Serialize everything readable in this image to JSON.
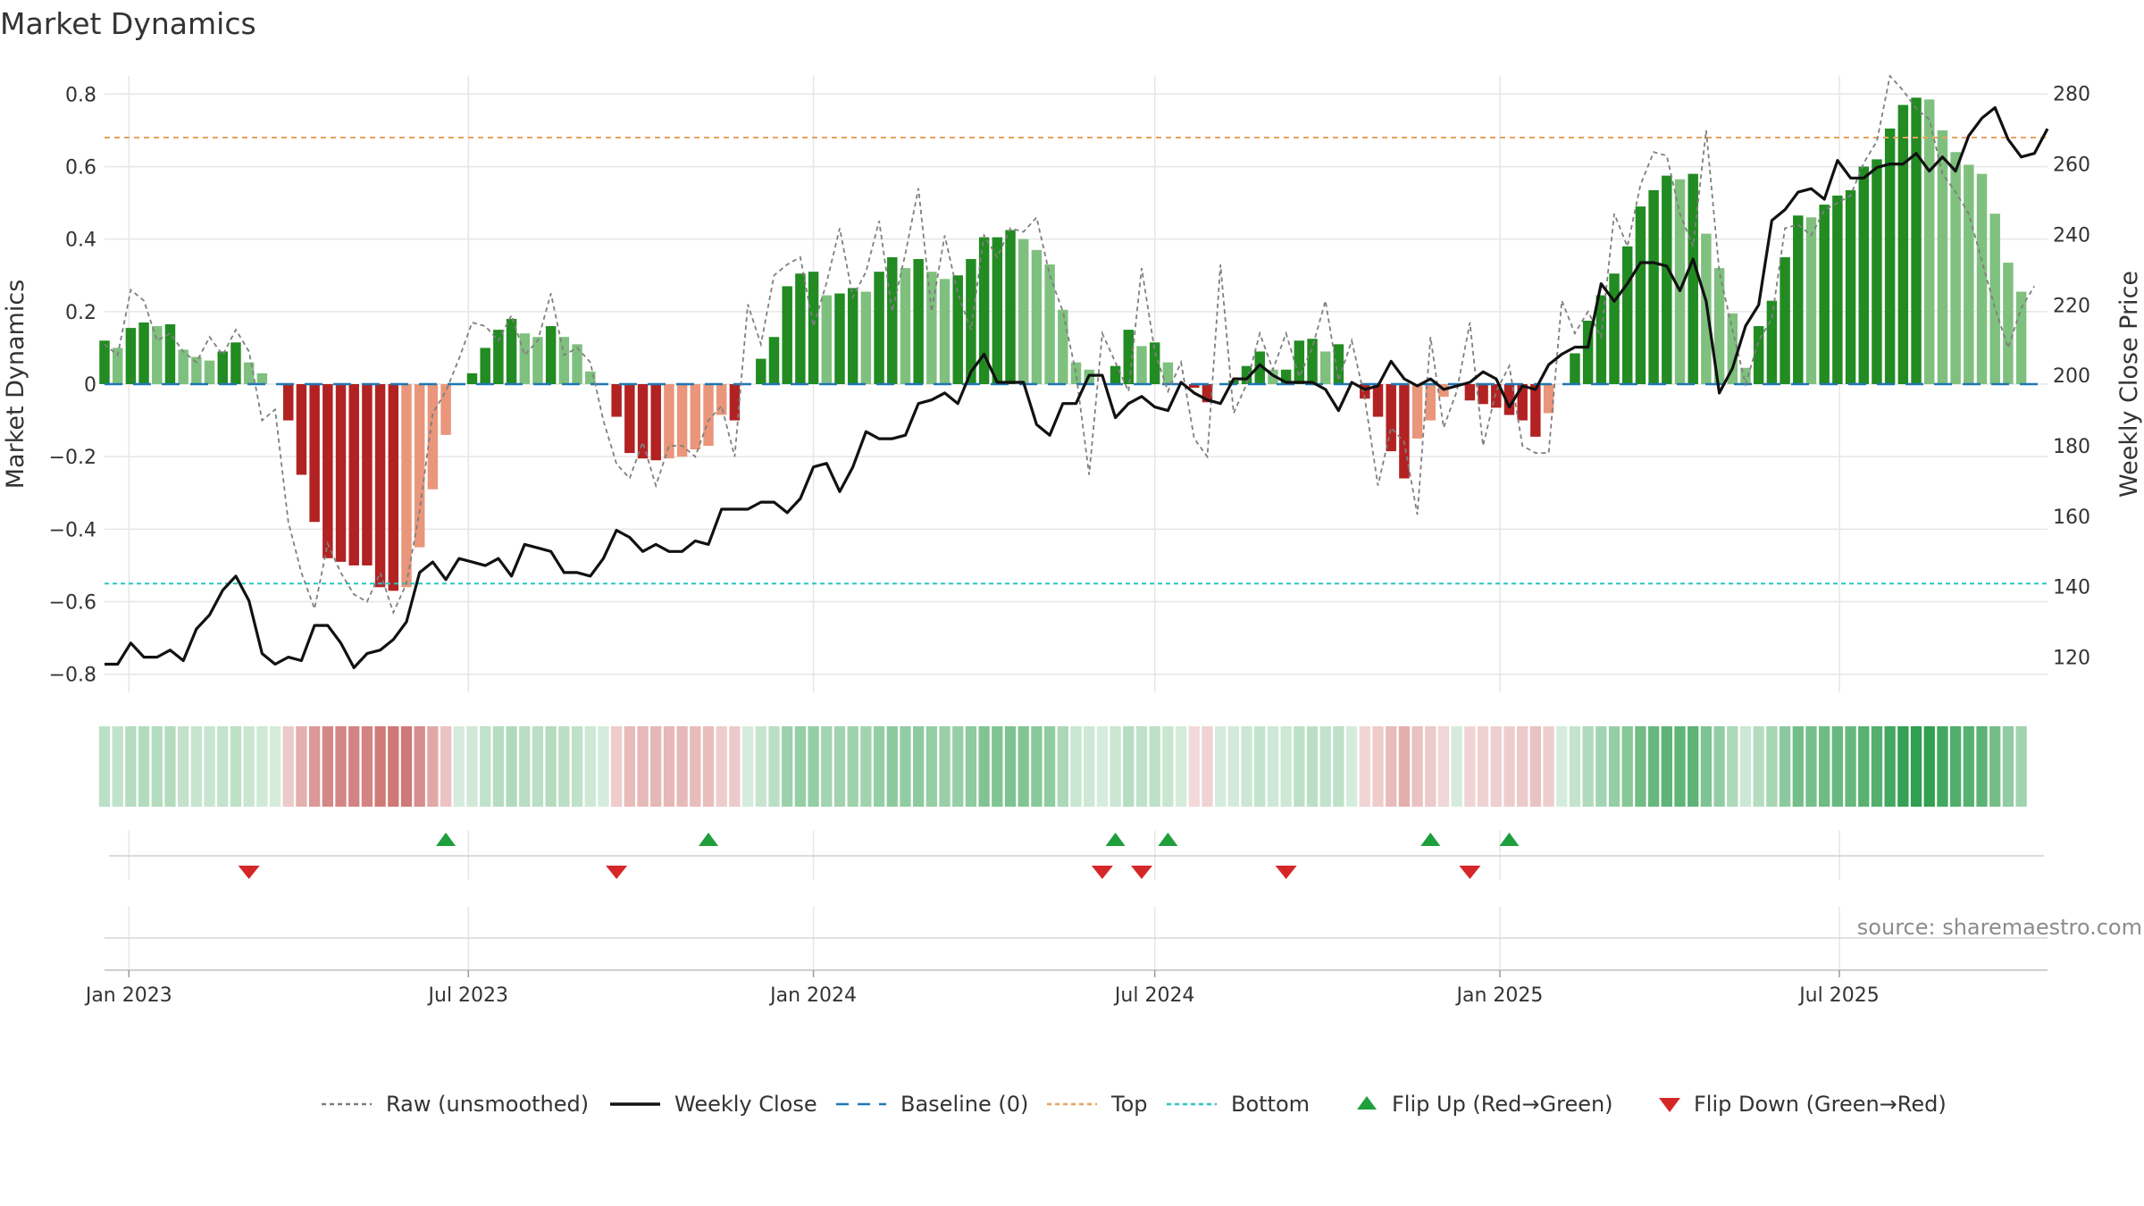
{
  "chart_data": {
    "type": "bar",
    "title": "Market Dynamics",
    "ylabel_left": "Market Dynamics",
    "ylabel_right": "Weekly Close Price",
    "ylim_left": [
      -0.85,
      0.85
    ],
    "ylim_right": [
      110,
      285
    ],
    "yticks_left": [
      -0.8,
      -0.6,
      -0.4,
      -0.2,
      0,
      0.2,
      0.4,
      0.6,
      0.8
    ],
    "ytick_labels_left": [
      "−0.8",
      "−0.6",
      "−0.4",
      "−0.2",
      "0",
      "0.2",
      "0.4",
      "0.6",
      "0.8"
    ],
    "yticks_right": [
      120,
      140,
      160,
      180,
      200,
      220,
      240,
      260,
      280
    ],
    "ytick_labels_right": [
      "120",
      "140",
      "160",
      "180",
      "200",
      "220",
      "240",
      "260",
      "280"
    ],
    "x_start": "2022-12-19",
    "x_end": "2025-10-20",
    "xticks": [
      {
        "date": "2023-01-01",
        "label": "Jan 2023"
      },
      {
        "date": "2023-07-01",
        "label": "Jul 2023"
      },
      {
        "date": "2024-01-01",
        "label": "Jan 2024"
      },
      {
        "date": "2024-07-01",
        "label": "Jul 2024"
      },
      {
        "date": "2025-01-01",
        "label": "Jan 2025"
      },
      {
        "date": "2025-07-01",
        "label": "Jul 2025"
      }
    ],
    "first_week": "2022-12-19",
    "top_level": 0.68,
    "bottom_level": -0.55,
    "baseline": 0,
    "dynamics": [
      0.12,
      0.1,
      0.155,
      0.17,
      0.16,
      0.165,
      0.095,
      0.075,
      0.065,
      0.09,
      0.115,
      0.06,
      0.03,
      0.0,
      -0.1,
      -0.25,
      -0.38,
      -0.48,
      -0.49,
      -0.5,
      -0.5,
      -0.56,
      -0.57,
      -0.56,
      -0.45,
      -0.29,
      -0.14,
      0.0,
      0.03,
      0.1,
      0.15,
      0.18,
      0.14,
      0.13,
      0.16,
      0.13,
      0.11,
      0.035,
      0.0,
      -0.09,
      -0.19,
      -0.205,
      -0.21,
      -0.205,
      -0.2,
      -0.18,
      -0.17,
      -0.085,
      -0.1,
      0.0,
      0.07,
      0.13,
      0.27,
      0.305,
      0.31,
      0.245,
      0.25,
      0.265,
      0.255,
      0.31,
      0.35,
      0.32,
      0.345,
      0.31,
      0.29,
      0.3,
      0.345,
      0.405,
      0.405,
      0.425,
      0.4,
      0.37,
      0.33,
      0.205,
      0.06,
      0.04,
      0.0,
      0.05,
      0.15,
      0.105,
      0.115,
      0.06,
      0.0,
      -0.01,
      -0.05,
      0.0,
      0.01,
      0.05,
      0.09,
      0.04,
      0.04,
      0.12,
      0.125,
      0.09,
      0.11,
      0.0,
      -0.04,
      -0.09,
      -0.185,
      -0.26,
      -0.15,
      -0.1,
      -0.035,
      0.0,
      -0.045,
      -0.055,
      -0.065,
      -0.085,
      -0.1,
      -0.145,
      -0.08,
      0.0,
      0.085,
      0.175,
      0.245,
      0.305,
      0.38,
      0.49,
      0.535,
      0.575,
      0.565,
      0.58,
      0.415,
      0.32,
      0.195,
      0.045,
      0.16,
      0.23,
      0.35,
      0.465,
      0.46,
      0.495,
      0.52,
      0.535,
      0.6,
      0.62,
      0.705,
      0.77,
      0.79,
      0.785,
      0.7,
      0.64,
      0.605,
      0.58,
      0.47,
      0.335,
      0.255
    ],
    "raw": [
      0.11,
      0.08,
      0.26,
      0.23,
      0.12,
      0.14,
      0.09,
      0.06,
      0.13,
      0.08,
      0.15,
      0.09,
      -0.1,
      -0.07,
      -0.38,
      -0.52,
      -0.62,
      -0.44,
      -0.52,
      -0.58,
      -0.6,
      -0.52,
      -0.63,
      -0.55,
      -0.35,
      -0.08,
      -0.02,
      0.07,
      0.17,
      0.16,
      0.12,
      0.19,
      0.08,
      0.12,
      0.25,
      0.08,
      0.1,
      0.06,
      -0.1,
      -0.22,
      -0.26,
      -0.16,
      -0.28,
      -0.17,
      -0.17,
      -0.2,
      -0.1,
      -0.06,
      -0.2,
      0.22,
      0.11,
      0.3,
      0.33,
      0.35,
      0.16,
      0.28,
      0.43,
      0.24,
      0.31,
      0.45,
      0.2,
      0.36,
      0.54,
      0.2,
      0.41,
      0.25,
      0.15,
      0.41,
      0.35,
      0.43,
      0.42,
      0.46,
      0.3,
      0.2,
      0.03,
      -0.25,
      0.14,
      0.06,
      -0.02,
      0.32,
      0.09,
      -0.02,
      0.06,
      -0.15,
      -0.2,
      0.33,
      -0.08,
      0.0,
      0.14,
      0.04,
      0.14,
      0.02,
      0.1,
      0.23,
      0.01,
      0.12,
      -0.04,
      -0.28,
      -0.12,
      -0.16,
      -0.36,
      0.13,
      -0.12,
      -0.02,
      0.17,
      -0.17,
      -0.02,
      0.05,
      -0.17,
      -0.19,
      -0.19,
      0.23,
      0.14,
      0.2,
      0.13,
      0.47,
      0.38,
      0.55,
      0.64,
      0.63,
      0.47,
      0.38,
      0.7,
      0.31,
      0.15,
      0.0,
      0.12,
      0.18,
      0.43,
      0.44,
      0.41,
      0.48,
      0.5,
      0.52,
      0.61,
      0.67,
      0.85,
      0.81,
      0.76,
      0.73,
      0.58,
      0.53,
      0.47,
      0.34,
      0.21,
      0.1,
      0.21,
      0.27
    ],
    "close": [
      118,
      118,
      124,
      120,
      120,
      122,
      119,
      128,
      132,
      139,
      143,
      136,
      121,
      118,
      120,
      119,
      129,
      129,
      124,
      117,
      121,
      122,
      125,
      130,
      144,
      147,
      142,
      148,
      147,
      146,
      148,
      143,
      152,
      151,
      150,
      144,
      144,
      143,
      148,
      156,
      154,
      150,
      152,
      150,
      150,
      153,
      152,
      162,
      162,
      162,
      164,
      164,
      161,
      165,
      174,
      175,
      167,
      174,
      184,
      182,
      182,
      183,
      192,
      193,
      195,
      192,
      201,
      206,
      198,
      198,
      198,
      186,
      183,
      192,
      192,
      200,
      200,
      188,
      192,
      194,
      191,
      190,
      198,
      195,
      193,
      192,
      199,
      199,
      203,
      200,
      198,
      198,
      198,
      196,
      190,
      198,
      196,
      197,
      204,
      199,
      197,
      199,
      196,
      197,
      198,
      201,
      199,
      191,
      197,
      196,
      203,
      206,
      208,
      208,
      226,
      221,
      226,
      232,
      232,
      231,
      224,
      233,
      221,
      195,
      202,
      214,
      220,
      244,
      247,
      252,
      253,
      250,
      261,
      256,
      256,
      259,
      260,
      260,
      263,
      258,
      262,
      258,
      268,
      273,
      276,
      267,
      262,
      263,
      270
    ],
    "flip_up": [
      "2023-06-19",
      "2023-11-06",
      "2024-06-10",
      "2024-07-08",
      "2024-11-25",
      "2025-01-06"
    ],
    "flip_down": [
      "2023-03-06",
      "2023-09-18",
      "2024-06-03",
      "2024-06-24",
      "2024-09-09",
      "2024-12-16"
    ],
    "legend": [
      {
        "label": "Raw (unsmoothed)",
        "kind": "dotted",
        "color": "#7f7f7f"
      },
      {
        "label": "Weekly Close",
        "kind": "line",
        "color": "#111111"
      },
      {
        "label": "Baseline (0)",
        "kind": "dashed",
        "color": "#1f77b4"
      },
      {
        "label": "Top",
        "kind": "dotted",
        "color": "#e8a35e"
      },
      {
        "label": "Bottom",
        "kind": "dotted",
        "color": "#27c6c6"
      },
      {
        "label": "Flip Up (Red→Green)",
        "kind": "tri-up",
        "color": "#1f9e3c"
      },
      {
        "label": "Flip Down (Green→Red)",
        "kind": "tri-down",
        "color": "#d62728"
      }
    ],
    "legend_position": "bottom-center",
    "source": "source: sharemaestro.com",
    "colors": {
      "green_strong": "#228b22",
      "green_light": "#7fc07f",
      "red_strong": "#b22222",
      "red_light": "#e9967a",
      "heat_green": "#2e9e4e",
      "heat_red": "#c0504d",
      "grid": "#e6e6e6"
    },
    "grid": true
  }
}
